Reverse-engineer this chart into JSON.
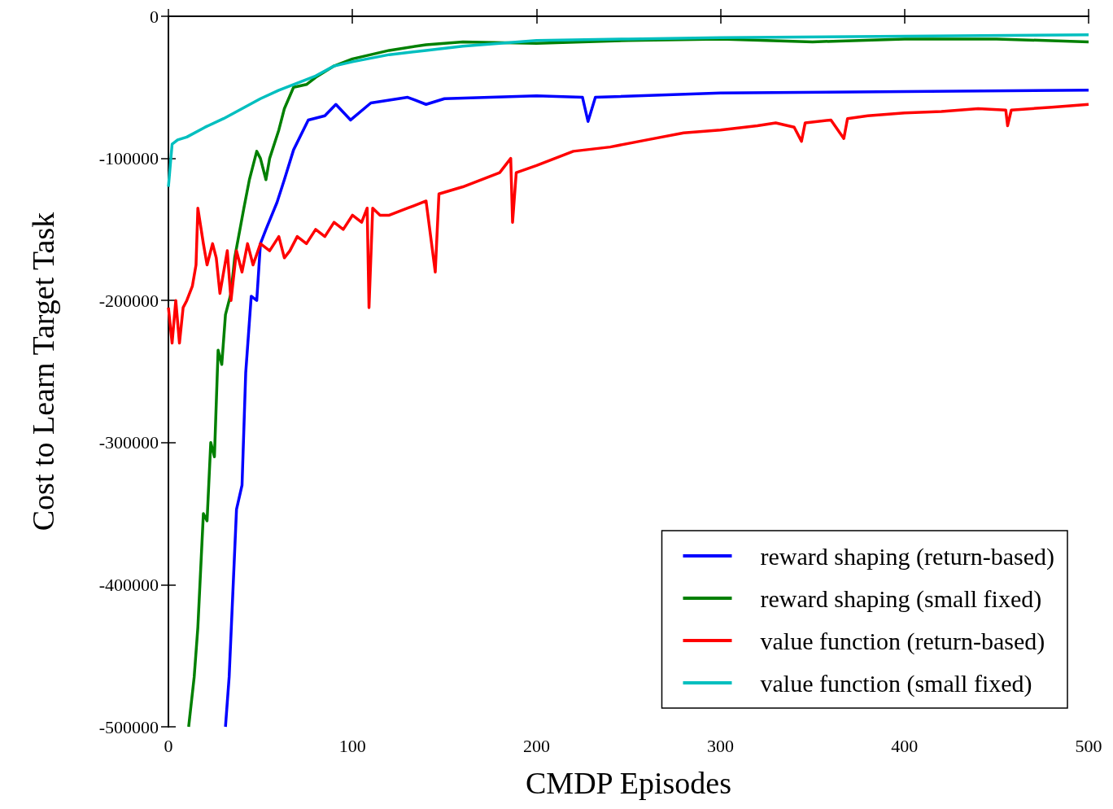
{
  "chart_data": {
    "type": "line",
    "xlabel": "CMDP Episodes",
    "ylabel": "Cost to Learn Target Task",
    "xlim": [
      0,
      500
    ],
    "ylim": [
      -500000,
      0
    ],
    "xticks": [
      0,
      100,
      200,
      300,
      400,
      500
    ],
    "yticks": [
      -500000,
      -400000,
      -300000,
      -200000,
      -100000,
      0
    ],
    "grid": false,
    "legend": "bottom right",
    "marker": "none",
    "line_style": "solid",
    "series": [
      {
        "name": "reward shaping (return-based)",
        "color": "#0000ff",
        "x": [
          31,
          33,
          37,
          40,
          42,
          45,
          48,
          50,
          53,
          59,
          63,
          68,
          76,
          85,
          91,
          99,
          110,
          130,
          140,
          150,
          200,
          225,
          228,
          232,
          300,
          400,
          500
        ],
        "values": [
          -500000,
          -465000,
          -347000,
          -330000,
          -251000,
          -197000,
          -200000,
          -160000,
          -150000,
          -131000,
          -115000,
          -94000,
          -73000,
          -70000,
          -62000,
          -73000,
          -61000,
          -57000,
          -62000,
          -58000,
          -56000,
          -57000,
          -74000,
          -57000,
          -54000,
          -53000,
          -52000
        ]
      },
      {
        "name": "reward shaping (small fixed)",
        "color": "#008000",
        "x": [
          11,
          14,
          16,
          19,
          21,
          23,
          25,
          27,
          29,
          31,
          34,
          36,
          41,
          44,
          48,
          50,
          53,
          55,
          60,
          63,
          68,
          75,
          80,
          90,
          100,
          120,
          140,
          160,
          200,
          250,
          300,
          350,
          400,
          450,
          500
        ],
        "values": [
          -500000,
          -465000,
          -430000,
          -350000,
          -355000,
          -300000,
          -310000,
          -235000,
          -245000,
          -210000,
          -195000,
          -170000,
          -135000,
          -115000,
          -95000,
          -100000,
          -115000,
          -100000,
          -80000,
          -65000,
          -50000,
          -48000,
          -43000,
          -35000,
          -30000,
          -24000,
          -20000,
          -18000,
          -19000,
          -17000,
          -16000,
          -18000,
          -16000,
          -16000,
          -18000
        ]
      },
      {
        "name": "value function (return-based)",
        "color": "#ff0000",
        "x": [
          0,
          2,
          4,
          6,
          8,
          10,
          13,
          15,
          16,
          19,
          21,
          24,
          26,
          28,
          30,
          32,
          34,
          37,
          40,
          43,
          46,
          50,
          55,
          60,
          63,
          66,
          70,
          75,
          80,
          85,
          90,
          95,
          100,
          105,
          108,
          109,
          111,
          115,
          120,
          130,
          140,
          145,
          147,
          160,
          170,
          180,
          186,
          187,
          189,
          200,
          210,
          220,
          240,
          260,
          280,
          300,
          320,
          330,
          340,
          344,
          346,
          360,
          367,
          369,
          380,
          400,
          420,
          440,
          455,
          456,
          458,
          480,
          500
        ],
        "values": [
          -205000,
          -230000,
          -200000,
          -230000,
          -205000,
          -200000,
          -190000,
          -175000,
          -135000,
          -160000,
          -175000,
          -160000,
          -170000,
          -195000,
          -180000,
          -165000,
          -200000,
          -165000,
          -180000,
          -160000,
          -175000,
          -160000,
          -165000,
          -155000,
          -170000,
          -165000,
          -155000,
          -160000,
          -150000,
          -155000,
          -145000,
          -150000,
          -140000,
          -145000,
          -135000,
          -205000,
          -135000,
          -140000,
          -140000,
          -135000,
          -130000,
          -180000,
          -125000,
          -120000,
          -115000,
          -110000,
          -100000,
          -145000,
          -110000,
          -105000,
          -100000,
          -95000,
          -92000,
          -87000,
          -82000,
          -80000,
          -77000,
          -75000,
          -78000,
          -88000,
          -75000,
          -73000,
          -86000,
          -72000,
          -70000,
          -68000,
          -67000,
          -65000,
          -66000,
          -77000,
          -66000,
          -64000,
          -62000
        ]
      },
      {
        "name": "value function (small fixed)",
        "color": "#00bfbf",
        "x": [
          0,
          2,
          5,
          10,
          20,
          30,
          40,
          50,
          60,
          70,
          80,
          90,
          100,
          120,
          140,
          160,
          200,
          250,
          300,
          400,
          500
        ],
        "values": [
          -120000,
          -90000,
          -87000,
          -85000,
          -78000,
          -72000,
          -65000,
          -58000,
          -52000,
          -47000,
          -42000,
          -35000,
          -32000,
          -27000,
          -24000,
          -21000,
          -17000,
          -16000,
          -15000,
          -14000,
          -13000
        ]
      }
    ]
  }
}
